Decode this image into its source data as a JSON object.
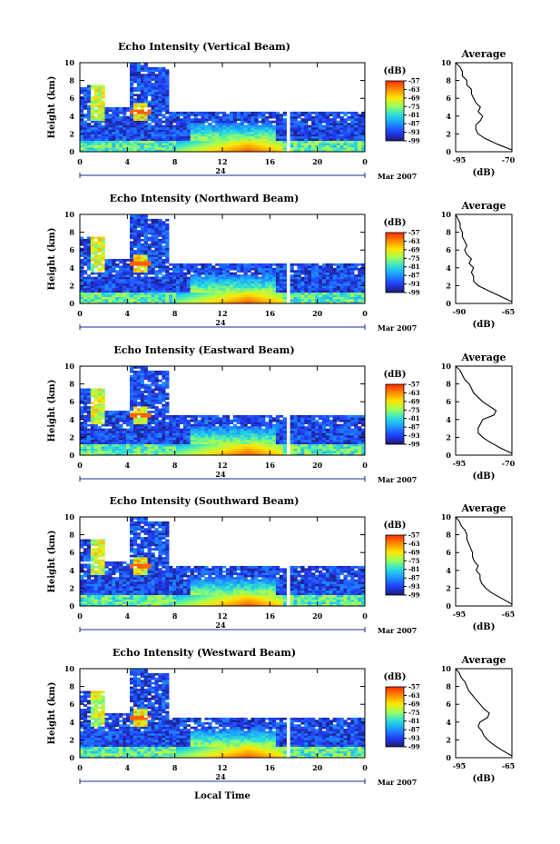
{
  "shared": {
    "x_ticks": [
      "0",
      "4",
      "8",
      "12",
      "16",
      "20",
      "0"
    ],
    "date_day": "24",
    "date_month": "Mar 2007",
    "y_ticks": [
      "0",
      "2",
      "4",
      "6",
      "8",
      "10"
    ],
    "y_label": "Height (km)",
    "x_label": "Local Time",
    "colorbar_unit": "(dB)",
    "colorbar_ticks": [
      "-57",
      "-63",
      "-69",
      "-75",
      "-81",
      "-87",
      "-93",
      "-99"
    ],
    "avg_title": "Average",
    "avg_xlabel": "(dB)"
  },
  "panels": [
    {
      "title": "Echo Intensity (Vertical Beam)",
      "avg_ticks": [
        "-95",
        "-70"
      ]
    },
    {
      "title": "Echo Intensity (Northward Beam)",
      "avg_ticks": [
        "-90",
        "-65"
      ]
    },
    {
      "title": "Echo Intensity (Eastward Beam)",
      "avg_ticks": [
        "-95",
        "-70"
      ]
    },
    {
      "title": "Echo Intensity (Southward Beam)",
      "avg_ticks": [
        "-95",
        "-65"
      ]
    },
    {
      "title": "Echo Intensity (Westward Beam)",
      "avg_ticks": [
        "-95",
        "-65"
      ]
    }
  ],
  "chart_data": [
    {
      "type": "heatmap",
      "title": "Echo Intensity (Vertical Beam)",
      "xlabel": "",
      "ylabel": "Height (km)",
      "xlim": [
        0,
        24
      ],
      "ylim": [
        0,
        10
      ],
      "clim": [
        -99,
        -57
      ],
      "colorbar": "(dB)"
    },
    {
      "type": "line",
      "title": "Average",
      "xlabel": "(dB)",
      "ylabel": "",
      "xlim": [
        -95,
        -70
      ],
      "ylim": [
        0,
        10
      ],
      "y": [
        0.2,
        0.8,
        1.5,
        2.0,
        2.5,
        3.0,
        3.5,
        4.0,
        4.5,
        5.0,
        5.5,
        6.0,
        6.5,
        7.0,
        7.5,
        8.0,
        8.5,
        9.0,
        9.5,
        10.0
      ],
      "x": [
        -70,
        -76,
        -82,
        -85,
        -86,
        -86,
        -84,
        -83,
        -85,
        -84,
        -86,
        -87,
        -88,
        -88,
        -90,
        -90,
        -92,
        -92,
        -93,
        -95
      ]
    },
    {
      "type": "heatmap",
      "title": "Echo Intensity (Northward Beam)",
      "xlabel": "",
      "ylabel": "Height (km)",
      "xlim": [
        0,
        24
      ],
      "ylim": [
        0,
        10
      ],
      "clim": [
        -99,
        -57
      ],
      "colorbar": "(dB)"
    },
    {
      "type": "line",
      "title": "Average",
      "xlabel": "(dB)",
      "ylabel": "",
      "xlim": [
        -90,
        -65
      ],
      "ylim": [
        0,
        10
      ],
      "y": [
        0.2,
        0.8,
        1.5,
        2.0,
        2.5,
        3.0,
        3.5,
        4.0,
        4.5,
        5.0,
        5.5,
        6.0,
        6.5,
        7.0,
        7.5,
        8.0,
        8.5,
        9.0,
        9.5,
        10.0
      ],
      "x": [
        -65,
        -70,
        -76,
        -80,
        -82,
        -82,
        -83,
        -82,
        -84,
        -83,
        -85,
        -86,
        -85,
        -86,
        -87,
        -87,
        -88,
        -88,
        -89,
        -90
      ]
    },
    {
      "type": "heatmap",
      "title": "Echo Intensity (Eastward Beam)",
      "xlabel": "",
      "ylabel": "Height (km)",
      "xlim": [
        0,
        24
      ],
      "ylim": [
        0,
        10
      ],
      "clim": [
        -99,
        -57
      ],
      "colorbar": "(dB)"
    },
    {
      "type": "line",
      "title": "Average",
      "xlabel": "(dB)",
      "ylabel": "",
      "xlim": [
        -95,
        -70
      ],
      "ylim": [
        0,
        10
      ],
      "y": [
        0.2,
        0.8,
        1.5,
        2.0,
        2.5,
        3.0,
        3.5,
        4.0,
        4.5,
        5.0,
        5.5,
        6.0,
        6.5,
        7.0,
        7.5,
        8.0,
        8.5,
        9.0,
        9.5,
        10.0
      ],
      "x": [
        -70,
        -75,
        -80,
        -83,
        -85,
        -85,
        -84,
        -83,
        -78,
        -77,
        -80,
        -83,
        -85,
        -87,
        -88,
        -89,
        -91,
        -92,
        -93,
        -95
      ]
    },
    {
      "type": "heatmap",
      "title": "Echo Intensity (Southward Beam)",
      "xlabel": "",
      "ylabel": "Height (km)",
      "xlim": [
        0,
        24
      ],
      "ylim": [
        0,
        10
      ],
      "clim": [
        -99,
        -57
      ],
      "colorbar": "(dB)"
    },
    {
      "type": "line",
      "title": "Average",
      "xlabel": "(dB)",
      "ylabel": "",
      "xlim": [
        -95,
        -65
      ],
      "ylim": [
        0,
        10
      ],
      "y": [
        0.2,
        0.8,
        1.5,
        2.0,
        2.5,
        3.0,
        3.5,
        4.0,
        4.5,
        5.0,
        5.5,
        6.0,
        6.5,
        7.0,
        7.5,
        8.0,
        8.5,
        9.0,
        9.5,
        10.0
      ],
      "x": [
        -65,
        -70,
        -76,
        -79,
        -81,
        -82,
        -82,
        -84,
        -83,
        -85,
        -86,
        -86,
        -87,
        -88,
        -89,
        -89,
        -90,
        -92,
        -93,
        -95
      ]
    },
    {
      "type": "heatmap",
      "title": "Echo Intensity (Westward Beam)",
      "xlabel": "",
      "ylabel": "Height (km)",
      "xlim": [
        0,
        24
      ],
      "ylim": [
        0,
        10
      ],
      "clim": [
        -99,
        -57
      ],
      "colorbar": "(dB)"
    },
    {
      "type": "line",
      "title": "Average",
      "xlabel": "(dB)",
      "ylabel": "",
      "xlim": [
        -95,
        -65
      ],
      "ylim": [
        0,
        10
      ],
      "y": [
        0.2,
        0.8,
        1.5,
        2.0,
        2.5,
        3.0,
        3.5,
        4.0,
        4.5,
        5.0,
        5.5,
        6.0,
        6.5,
        7.0,
        7.5,
        8.0,
        8.5,
        9.0,
        9.5,
        10.0
      ],
      "x": [
        -65,
        -70,
        -75,
        -78,
        -80,
        -81,
        -83,
        -82,
        -78,
        -77,
        -80,
        -82,
        -84,
        -86,
        -88,
        -89,
        -90,
        -92,
        -93,
        -95
      ]
    }
  ]
}
